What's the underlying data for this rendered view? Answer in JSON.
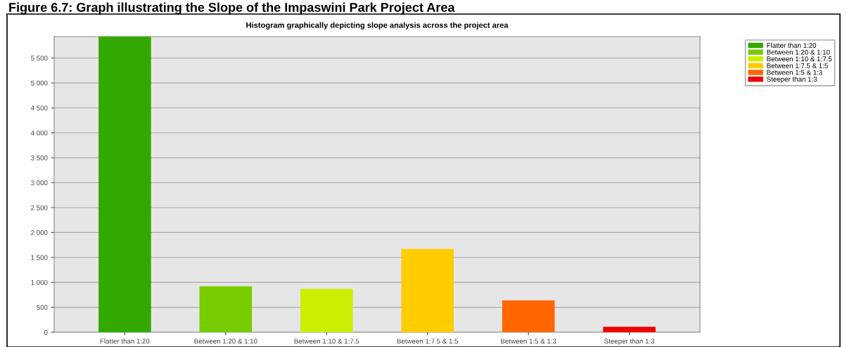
{
  "chart_data": {
    "type": "bar",
    "title": "Histogram graphically depicting slope analysis across the project area",
    "annotations": [
      "Figure 6.7: Graph illustrating the Slope of the Impaswini Park Project Area"
    ],
    "categories": [
      "Flatter than 1:20",
      "Between 1:20 & 1:10",
      "Between 1:10 & 1:7.5",
      "Between 1:7.5 & 1:5",
      "Between 1:5 & 1:3",
      "Steeper than 1:3"
    ],
    "series": [
      {
        "name": "Flatter than 1:20",
        "color": "#33a800",
        "values": [
          5930,
          null,
          null,
          null,
          null,
          null
        ]
      },
      {
        "name": "Between 1:20 & 1:10",
        "color": "#77cc00",
        "values": [
          null,
          920,
          null,
          null,
          null,
          null
        ]
      },
      {
        "name": "Between 1:10 & 1:7.5",
        "color": "#ccee00",
        "values": [
          null,
          null,
          870,
          null,
          null,
          null
        ]
      },
      {
        "name": "Between 1:7.5 & 1:5",
        "color": "#ffcc00",
        "values": [
          null,
          null,
          null,
          1670,
          null,
          null
        ]
      },
      {
        "name": "Between 1:5 & 1:3",
        "color": "#ff6600",
        "values": [
          null,
          null,
          null,
          null,
          640,
          null
        ]
      },
      {
        "name": "Steeper than 1:3",
        "color": "#ee0000",
        "values": [
          null,
          null,
          null,
          null,
          null,
          110
        ]
      }
    ],
    "ylim": [
      0,
      5930
    ],
    "yticks": [
      0,
      500,
      {
        "value": 1000,
        "label": "1 000"
      },
      {
        "value": 1500,
        "label": "1 500"
      },
      {
        "value": 2000,
        "label": "2 000"
      },
      {
        "value": 2500,
        "label": "2 500"
      },
      {
        "value": 3000,
        "label": "3 000"
      },
      {
        "value": 3500,
        "label": "3 500"
      },
      {
        "value": 4000,
        "label": "4 000"
      },
      {
        "value": 4500,
        "label": "4 500"
      },
      {
        "value": 5000,
        "label": "5 000"
      },
      {
        "value": 5500,
        "label": "5 500"
      }
    ],
    "grid": "y",
    "legend": "top right"
  }
}
